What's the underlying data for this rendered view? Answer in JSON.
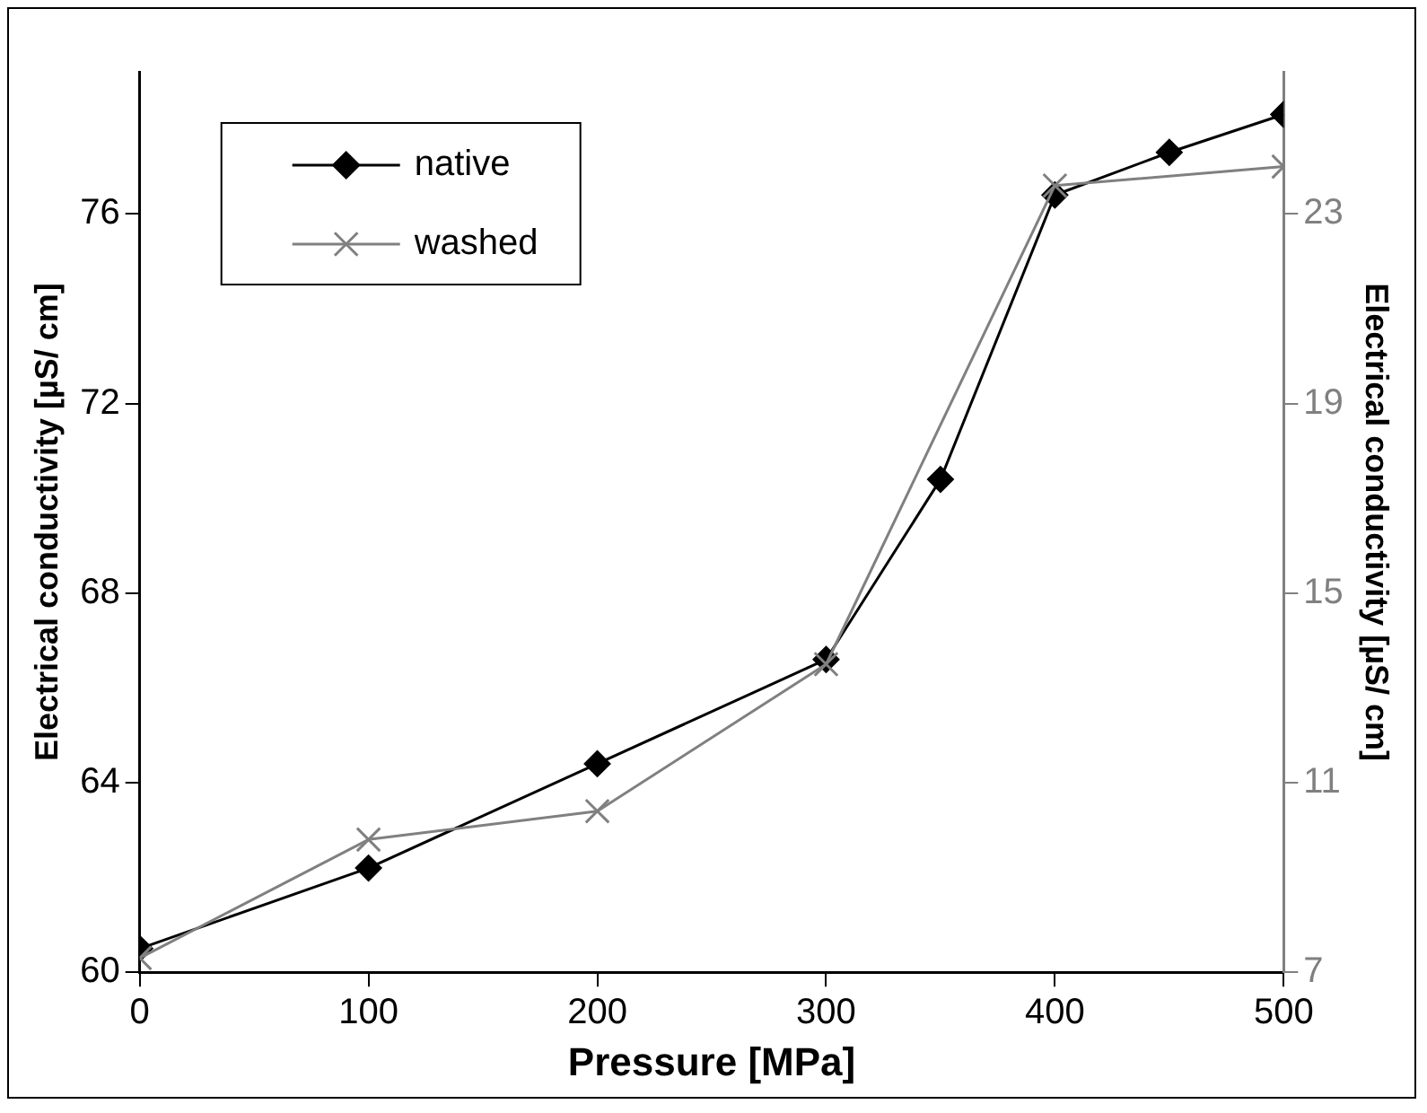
{
  "chart_data": {
    "type": "line",
    "xlabel": "Pressure [MPa]",
    "ylabel": "Electrical conductivity [µS/ cm]",
    "y2label": "Electrical conductivity [µS/ cm]",
    "xlim": [
      0,
      500
    ],
    "xticks": [
      0,
      100,
      200,
      300,
      400,
      500
    ],
    "ylim": [
      60,
      79
    ],
    "yticks": [
      60,
      64,
      68,
      72,
      76
    ],
    "y2lim": [
      7,
      26
    ],
    "y2ticks": [
      7,
      11,
      15,
      19,
      23
    ],
    "grid": false,
    "legend": "top left",
    "series": [
      {
        "name": "native",
        "color": "#000000",
        "marker": "diamond",
        "x": [
          0,
          100,
          200,
          300,
          350,
          400,
          450,
          500
        ],
        "values": [
          60.5,
          62.2,
          64.4,
          66.6,
          70.4,
          76.4,
          77.3,
          78.1
        ]
      },
      {
        "name": "washed",
        "color": "#808080",
        "marker": "cross",
        "axis": "y2",
        "x": [
          0,
          100,
          200,
          300,
          400,
          500
        ],
        "values": [
          7.3,
          9.8,
          10.4,
          13.5,
          23.6,
          24.0
        ]
      }
    ]
  }
}
